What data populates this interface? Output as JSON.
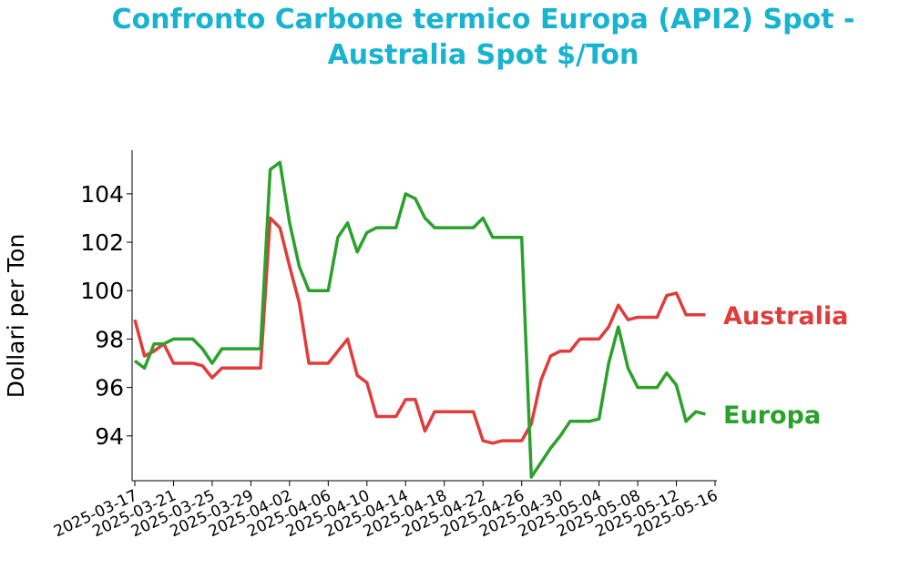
{
  "chart_data": {
    "type": "line",
    "title": "Confronto Carbone termico Europa (API2) Spot - Australia Spot $/Ton",
    "y_label": "Dollari per Ton",
    "x": [
      "2025-03-17",
      "2025-03-18",
      "2025-03-19",
      "2025-03-20",
      "2025-03-21",
      "2025-03-22",
      "2025-03-23",
      "2025-03-24",
      "2025-03-25",
      "2025-03-26",
      "2025-03-27",
      "2025-03-28",
      "2025-03-29",
      "2025-03-30",
      "2025-03-31",
      "2025-04-01",
      "2025-04-02",
      "2025-04-03",
      "2025-04-04",
      "2025-04-05",
      "2025-04-06",
      "2025-04-07",
      "2025-04-08",
      "2025-04-09",
      "2025-04-10",
      "2025-04-11",
      "2025-04-12",
      "2025-04-13",
      "2025-04-14",
      "2025-04-15",
      "2025-04-16",
      "2025-04-17",
      "2025-04-18",
      "2025-04-19",
      "2025-04-20",
      "2025-04-21",
      "2025-04-22",
      "2025-04-23",
      "2025-04-24",
      "2025-04-25",
      "2025-04-26",
      "2025-04-27",
      "2025-04-28",
      "2025-04-29",
      "2025-04-30",
      "2025-05-01",
      "2025-05-02",
      "2025-05-03",
      "2025-05-04",
      "2025-05-05",
      "2025-05-06",
      "2025-05-07",
      "2025-05-08",
      "2025-05-09",
      "2025-05-10",
      "2025-05-11",
      "2025-05-12",
      "2025-05-13",
      "2025-05-14",
      "2025-05-15"
    ],
    "series": [
      {
        "name": "Australia",
        "color": "#e03c3c",
        "values": [
          98.8,
          97.3,
          97.5,
          97.8,
          97.0,
          97.0,
          97.0,
          96.9,
          96.4,
          96.8,
          96.8,
          96.8,
          96.8,
          96.8,
          103.0,
          102.6,
          101.0,
          99.5,
          97.0,
          97.0,
          97.0,
          97.5,
          98.0,
          96.5,
          96.2,
          94.8,
          94.8,
          94.8,
          95.5,
          95.5,
          94.2,
          95.0,
          95.0,
          95.0,
          95.0,
          95.0,
          93.8,
          93.7,
          93.8,
          93.8,
          93.8,
          94.5,
          96.3,
          97.3,
          97.5,
          97.5,
          98.0,
          98.0,
          98.0,
          98.5,
          99.4,
          98.8,
          98.9,
          98.9,
          98.9,
          99.8,
          99.9,
          99.0,
          99.0,
          99.0
        ]
      },
      {
        "name": "Europa",
        "color": "#2ca02c",
        "values": [
          97.1,
          96.8,
          97.8,
          97.8,
          98.0,
          98.0,
          98.0,
          97.6,
          97.0,
          97.6,
          97.6,
          97.6,
          97.6,
          97.6,
          105.0,
          105.3,
          102.8,
          101.0,
          100.0,
          100.0,
          100.0,
          102.2,
          102.8,
          101.6,
          102.4,
          102.6,
          102.6,
          102.6,
          104.0,
          103.8,
          103.0,
          102.6,
          102.6,
          102.6,
          102.6,
          102.6,
          103.0,
          102.2,
          102.2,
          102.2,
          102.2,
          92.3,
          92.9,
          93.5,
          94.0,
          94.6,
          94.6,
          94.6,
          94.7,
          97.0,
          98.5,
          96.8,
          96.0,
          96.0,
          96.0,
          96.6,
          96.1,
          94.6,
          95.0,
          94.9
        ]
      }
    ],
    "xlim": [
      "2025-03-17",
      "2025-05-16"
    ],
    "xticks": [
      "2025-03-17",
      "2025-03-21",
      "2025-03-25",
      "2025-03-29",
      "2025-04-02",
      "2025-04-06",
      "2025-04-10",
      "2025-04-14",
      "2025-04-18",
      "2025-04-22",
      "2025-04-26",
      "2025-04-30",
      "2025-05-04",
      "2025-05-08",
      "2025-05-12",
      "2025-05-16"
    ],
    "ylim": [
      92.15,
      105.8
    ],
    "yticks": [
      94,
      96,
      98,
      100,
      102,
      104
    ],
    "grid": false
  }
}
